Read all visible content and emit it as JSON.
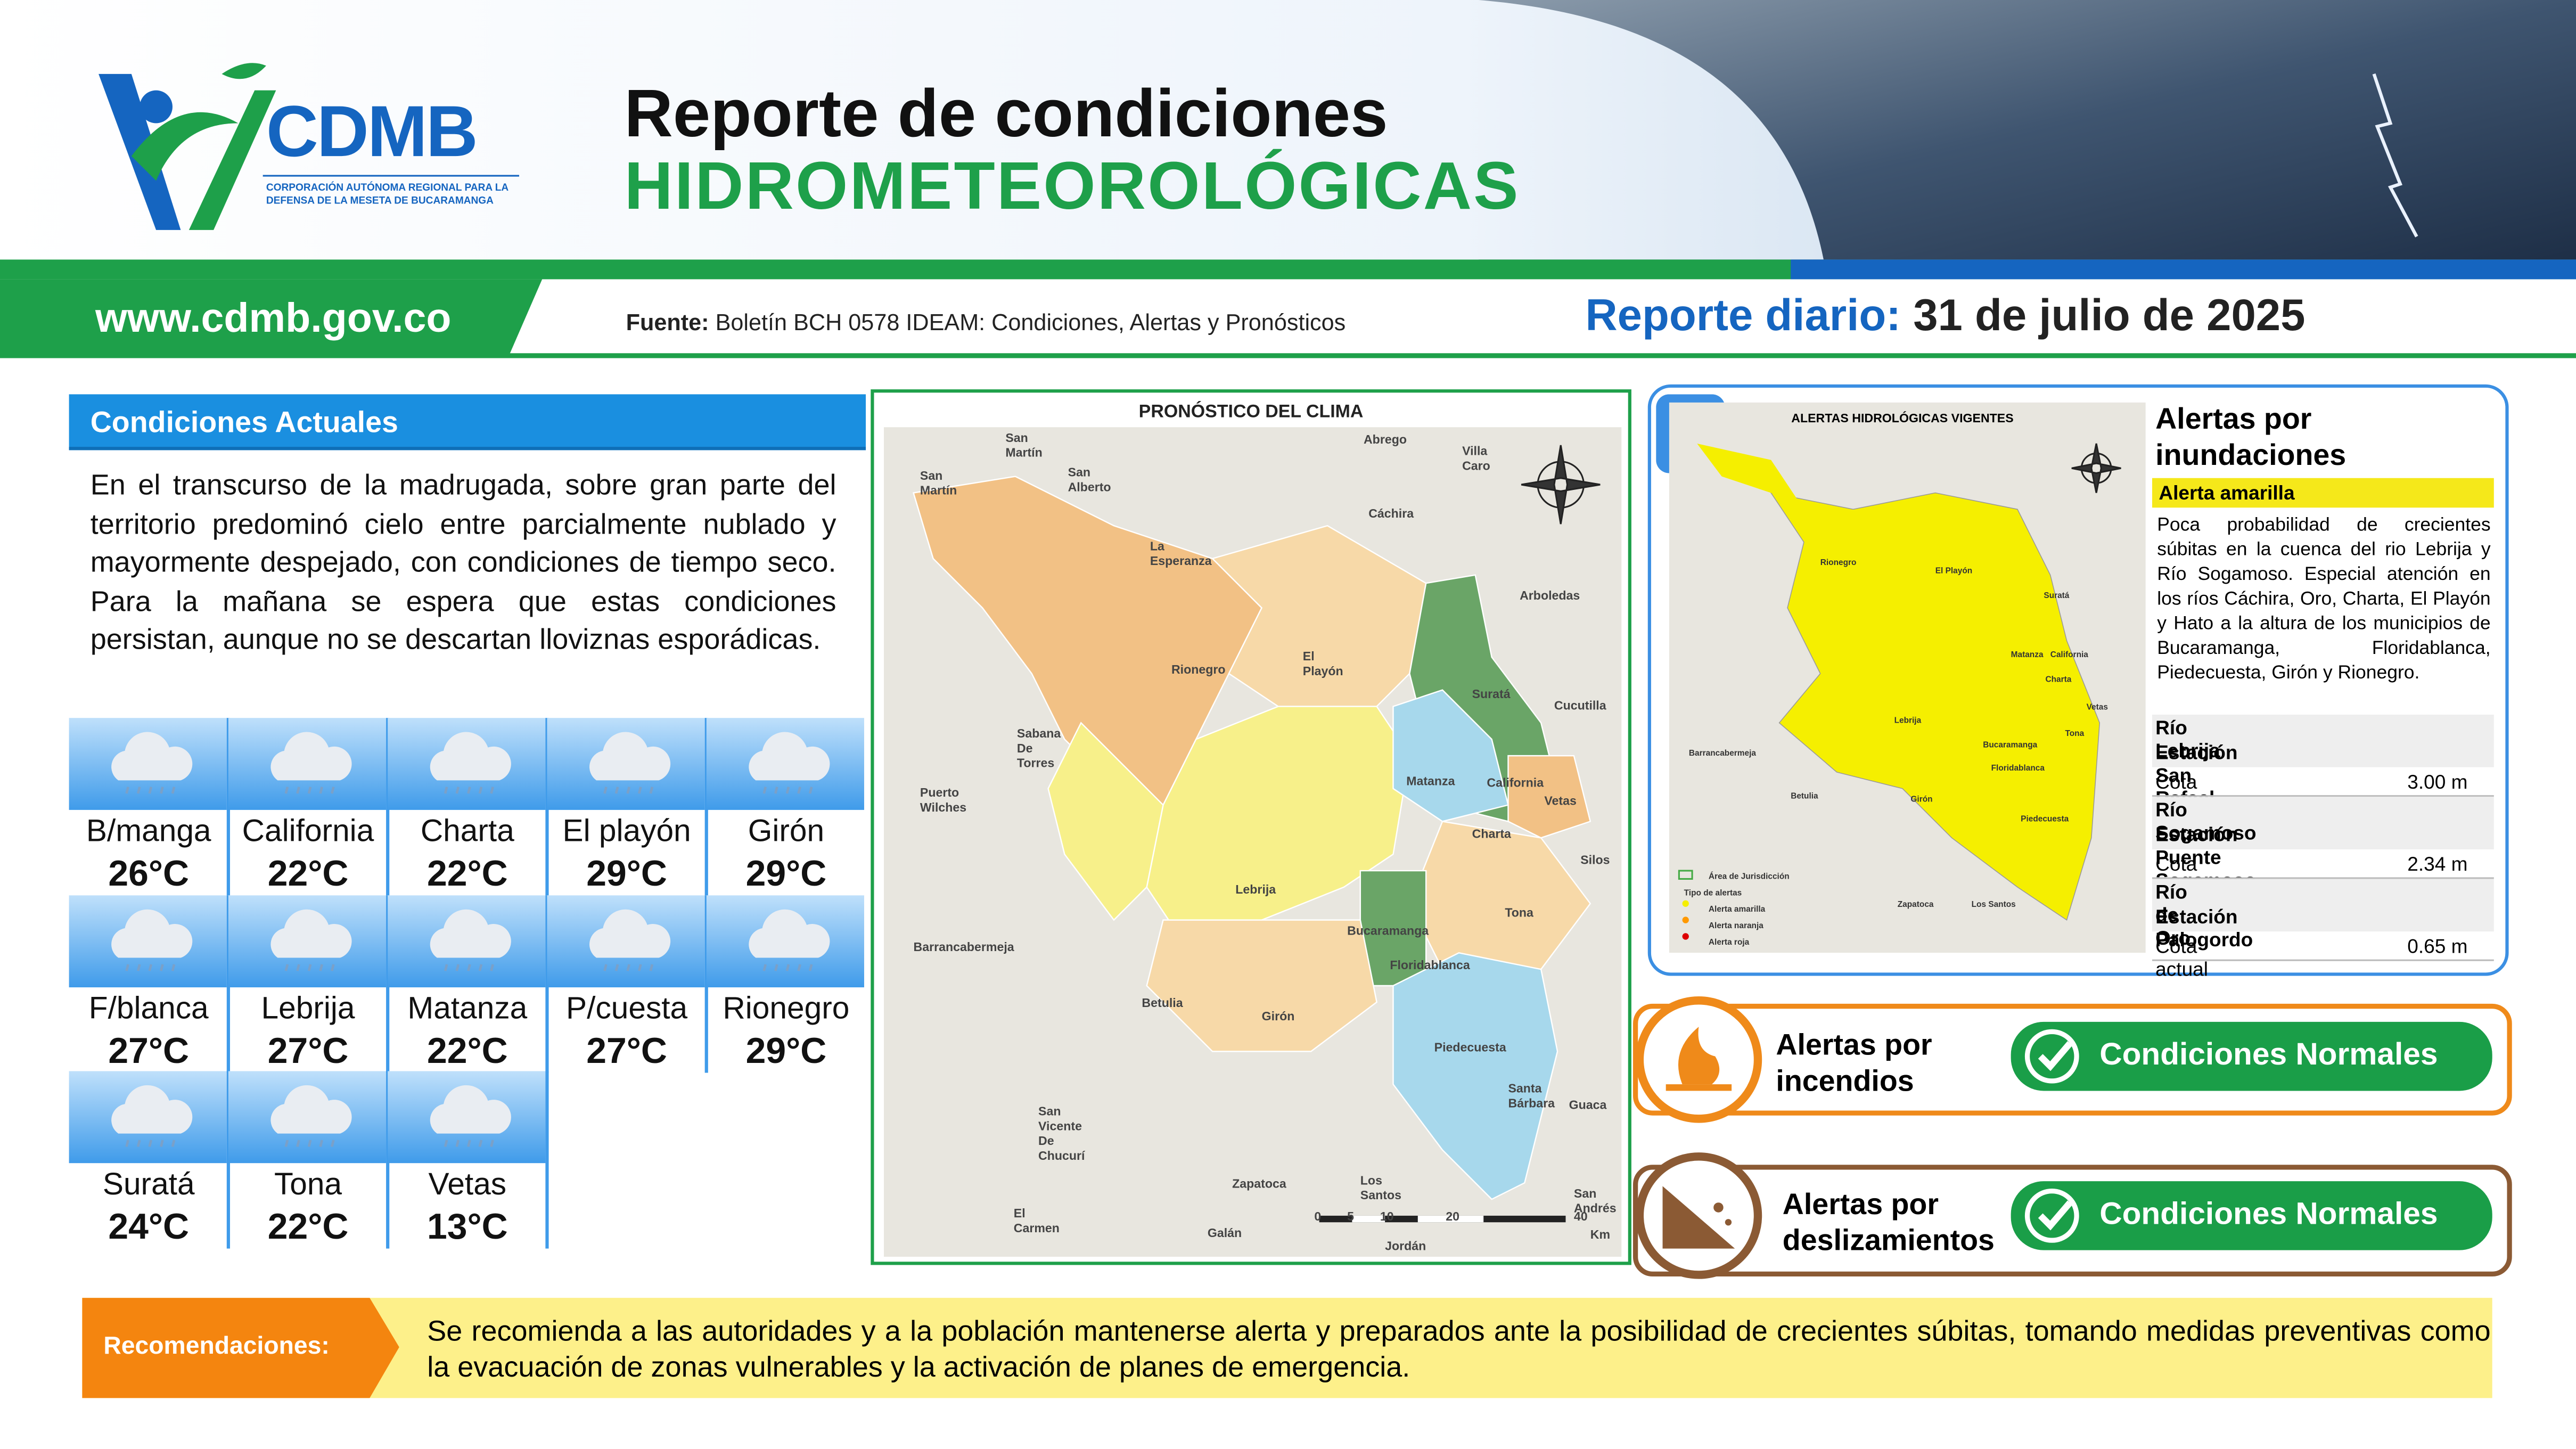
{
  "header": {
    "logo_text": "CDMB",
    "logo_subtitle": "CORPORACIÓN AUTÓNOMA REGIONAL PARA LA DEFENSA DE LA MESETA DE BUCARAMANGA",
    "title_line1": "Reporte de condiciones",
    "title_line2": "HIDROMETEOROLÓGICAS",
    "url": "www.cdmb.gov.co",
    "source_label": "Fuente:",
    "source_text": "Boletín BCH 0578 IDEAM: Condiciones, Alertas y Pronósticos",
    "report_label": "Reporte diario:",
    "report_date": "31 de julio de 2025"
  },
  "conditions": {
    "title": "Condiciones Actuales",
    "text": "En el transcurso de la madrugada, sobre gran parte del territorio predominó cielo entre parcialmente nublado y mayormente despejado, con condiciones de tiempo seco. Para la mañana se espera que estas condiciones persistan, aunque no se descartan lloviznas esporádicas.",
    "stations": [
      {
        "name": "B/manga",
        "temp": "26°C"
      },
      {
        "name": "California",
        "temp": "22°C"
      },
      {
        "name": "Charta",
        "temp": "22°C"
      },
      {
        "name": "El playón",
        "temp": "29°C"
      },
      {
        "name": "Girón",
        "temp": "29°C"
      },
      {
        "name": "F/blanca",
        "temp": "27°C"
      },
      {
        "name": "Lebrija",
        "temp": "27°C"
      },
      {
        "name": "Matanza",
        "temp": "22°C"
      },
      {
        "name": "P/cuesta",
        "temp": "27°C"
      },
      {
        "name": "Rionegro",
        "temp": "29°C"
      },
      {
        "name": "Suratá",
        "temp": "24°C"
      },
      {
        "name": "Tona",
        "temp": "22°C"
      },
      {
        "name": "Vetas",
        "temp": "13°C"
      }
    ]
  },
  "climate_map": {
    "title": "PRONÓSTICO DEL CLIMA",
    "labels": [
      "San Martín",
      "Abrego",
      "Villa Caro",
      "San Martín",
      "San Alberto",
      "Cáchira",
      "La Esperanza",
      "Arboledas",
      "Rionegro",
      "El Playón",
      "Suratá",
      "Cucutilla",
      "Sabana De Torres",
      "Matanza",
      "California",
      "Vetas",
      "Puerto Wilches",
      "Charta",
      "Silos",
      "Lebrija",
      "Tona",
      "Bucaramanga",
      "Barrancabermeja",
      "Floridablanca",
      "Betulia",
      "Girón",
      "Piedecuesta",
      "Santa Bárbara",
      "Guaca",
      "San Vicente De Chucurí",
      "Zapatoca",
      "Los Santos",
      "San Andrés",
      "El Carmen",
      "Galán",
      "Jordán"
    ],
    "scale": [
      "0",
      "5",
      "10",
      "20",
      "40",
      "Km"
    ]
  },
  "flood_alerts": {
    "map_title": "ALERTAS HIDROLÓGICAS VIGENTES",
    "map_labels": [
      "Rionegro",
      "El Playón",
      "Suratá",
      "Matanza",
      "California",
      "Charta",
      "Lebrija",
      "Bucaramanga",
      "Floridablanca",
      "Girón",
      "Piedecuesta",
      "Tona",
      "Vetas",
      "Barrancabermeja",
      "Betulia",
      "Zapatoca",
      "Los Santos"
    ],
    "legend": [
      "Área de Jurisdicción",
      "Tipo de alertas",
      "Alerta amarilla",
      "Alerta naranja",
      "Alerta roja"
    ],
    "title": "Alertas por inundaciones",
    "level": "Alerta amarilla",
    "description": "Poca probabilidad de crecientes súbitas en la cuenca del rio Lebrija y Río Sogamoso. Especial atención en los ríos Cáchira, Oro, Charta, El Playón y Hato a la altura de los municipios de Bucaramanga, Floridablanca, Piedecuesta, Girón y Rionegro.",
    "stations": [
      {
        "river": "Río Lebrija",
        "station": "Estación San Rafael",
        "label": "Cota actual",
        "value": "3.00 m"
      },
      {
        "river": "Río Sogamoso",
        "station": "Estación Puente Sogamoso",
        "label": "Cota actual",
        "value": "2.34 m"
      },
      {
        "river": "Río de Oro",
        "station": "Estación Palogordo",
        "label": "Cota actual",
        "value": "0.65 m"
      }
    ]
  },
  "fire_alerts": {
    "title": "Alertas por incendios",
    "status": "Condiciones Normales"
  },
  "landslide_alerts": {
    "title": "Alertas por deslizamientos",
    "status": "Condiciones Normales"
  },
  "recommendations": {
    "label": "Recomendaciones:",
    "text": "Se recomienda a las autoridades y a la población mantenerse alerta y preparados ante la posibilidad de crecientes súbitas, tomando medidas preventivas como la evacuación de zonas vulnerables y la activación de planes de emergencia."
  }
}
